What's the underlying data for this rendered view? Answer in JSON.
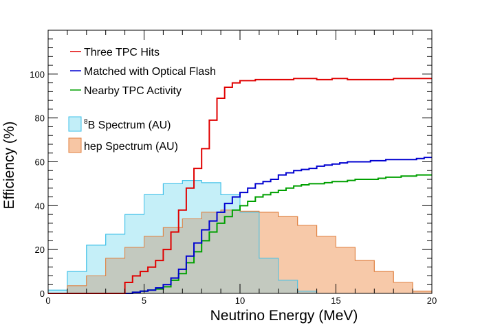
{
  "chart_data": {
    "type": "line",
    "title": "",
    "xlabel": "Neutrino Energy (MeV)",
    "ylabel": "Efficiency (%)",
    "xlim": [
      0,
      20
    ],
    "ylim": [
      0,
      120
    ],
    "xticks": [
      "0",
      "5",
      "10",
      "15",
      "20"
    ],
    "yticks": [
      "0",
      "20",
      "40",
      "60",
      "80",
      "100"
    ],
    "grid": false,
    "legend_position": "top-left",
    "step_series": [
      {
        "name": "Three TPC Hits",
        "color": "#e00000",
        "bin_width": 0.4,
        "x_start": 0,
        "values": [
          0,
          0,
          0,
          0,
          0,
          0,
          0,
          0,
          0,
          0,
          5,
          8,
          10,
          12,
          15,
          20,
          28,
          38,
          48,
          57,
          66,
          79,
          89,
          94,
          96,
          97,
          97,
          97.5,
          97.5,
          97.5,
          97.5,
          97.5,
          98,
          98,
          98,
          97.5,
          97.5,
          98,
          98,
          97.5,
          97.5,
          97.5,
          97.5,
          97.5,
          97.5,
          98,
          98,
          98,
          98,
          98
        ]
      },
      {
        "name": "Matched with Optical Flash",
        "color": "#0000d0",
        "bin_width": 0.4,
        "x_start": 0,
        "values": [
          0,
          0,
          0,
          0,
          0,
          0,
          0,
          0,
          0,
          0,
          0,
          0.5,
          1,
          1.5,
          2.5,
          4,
          7,
          11,
          17,
          23,
          29,
          33,
          37,
          41,
          44,
          46,
          48,
          50,
          51,
          52,
          54,
          55,
          56,
          56.5,
          57,
          58,
          58.5,
          59,
          59.5,
          60,
          60,
          60,
          60.5,
          60.5,
          61,
          61,
          61,
          61,
          61.5,
          62
        ]
      },
      {
        "name": "Nearby TPC Activity",
        "color": "#00a000",
        "bin_width": 0.4,
        "x_start": 0,
        "values": [
          0,
          0,
          0,
          0,
          0,
          0,
          0,
          0,
          0,
          0,
          0,
          0.5,
          1,
          1.5,
          2,
          3,
          6,
          9,
          14,
          19,
          24,
          28,
          32,
          35,
          38,
          40,
          42,
          44,
          45,
          46,
          47,
          48,
          49,
          49.5,
          50,
          50,
          50.5,
          51,
          51,
          51.5,
          52,
          52,
          52,
          52.5,
          53,
          53,
          53.5,
          53.5,
          54,
          54
        ]
      }
    ],
    "hist_series": [
      {
        "name": "8B Spectrum (AU)",
        "name_sup": "8",
        "name_rest": "B Spectrum (AU)",
        "fill": "#c2eef8",
        "stroke": "#3fc0e8",
        "bin_width": 1,
        "x_start": 0,
        "values": [
          1.5,
          10,
          22,
          27,
          36,
          45,
          50,
          51.5,
          50.5,
          45,
          37,
          16,
          6,
          1,
          0,
          0,
          0,
          0,
          0,
          0
        ]
      },
      {
        "name": "hep Spectrum (AU)",
        "fill": "#f7c6a4",
        "stroke": "#e08040",
        "bin_width": 1,
        "x_start": 0,
        "values": [
          0,
          3.5,
          8,
          16,
          21,
          26,
          30,
          34,
          37,
          38,
          37.5,
          37,
          35,
          31,
          26,
          21,
          15,
          10,
          5,
          1
        ]
      }
    ]
  }
}
